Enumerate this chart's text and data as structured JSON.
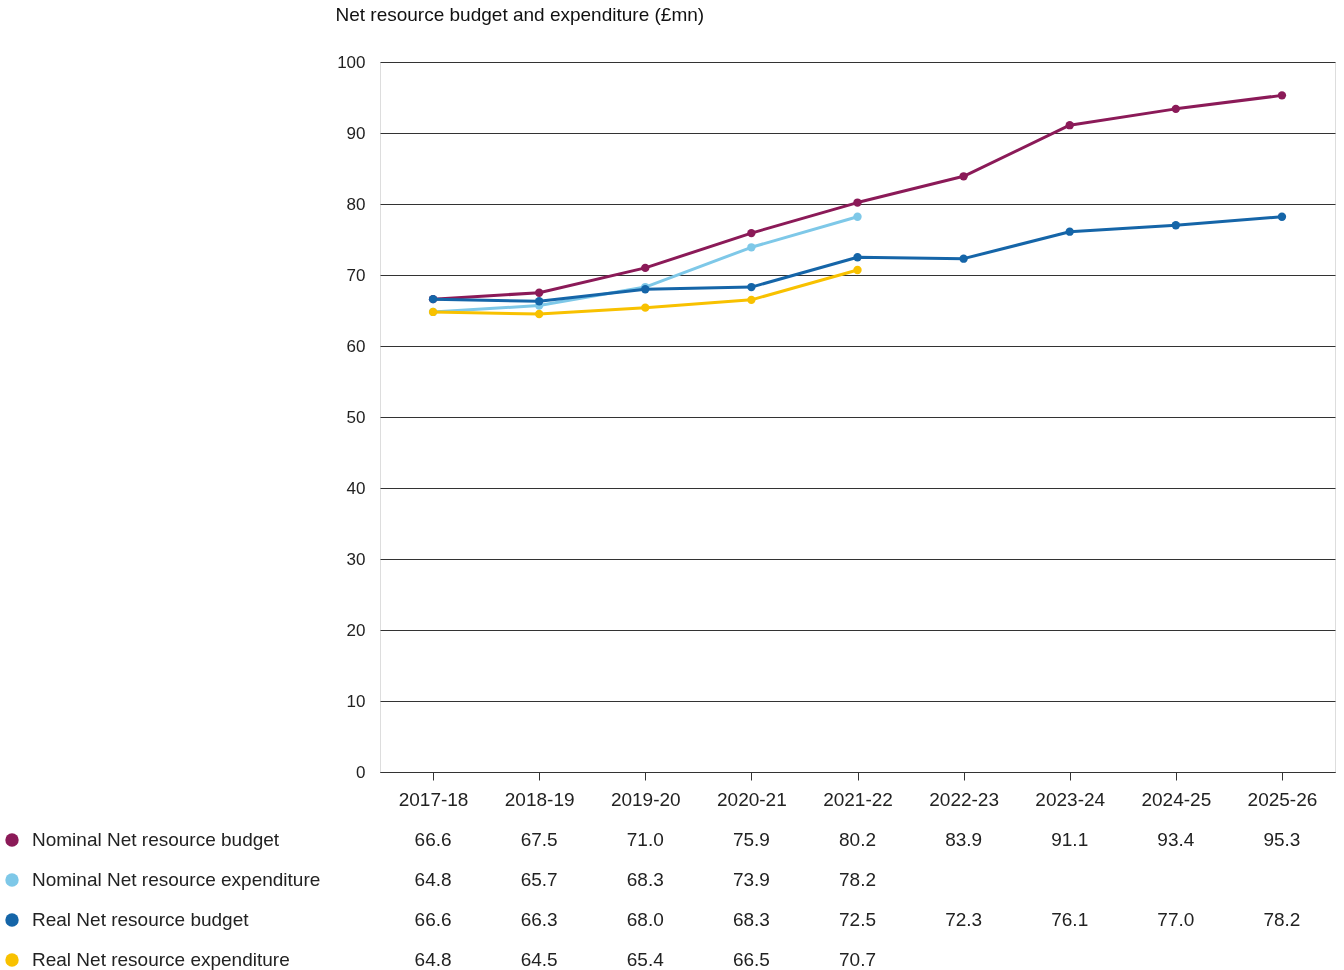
{
  "chart_data": {
    "type": "line",
    "ylabel": "Net resource budget and expenditure (£mn)",
    "categories": [
      "2017-18",
      "2018-19",
      "2019-20",
      "2020-21",
      "2021-22",
      "2022-23",
      "2023-24",
      "2024-25",
      "2025-26"
    ],
    "series": [
      {
        "name": "Nominal Net resource budget",
        "color": "#8b1a58",
        "values": [
          66.6,
          67.5,
          71.0,
          75.9,
          80.2,
          83.9,
          91.1,
          93.4,
          95.3
        ],
        "value_labels": [
          "66.6",
          "67.5",
          "71.0",
          "75.9",
          "80.2",
          "83.9",
          "91.1",
          "93.4",
          "95.3"
        ]
      },
      {
        "name": "Nominal Net resource expenditure",
        "color": "#7ec8e8",
        "values": [
          64.8,
          65.7,
          68.3,
          73.9,
          78.2,
          null,
          null,
          null,
          null
        ],
        "value_labels": [
          "64.8",
          "65.7",
          "68.3",
          "73.9",
          "78.2",
          null,
          null,
          null,
          null
        ]
      },
      {
        "name": "Real Net resource budget",
        "color": "#1565a8",
        "values": [
          66.6,
          66.3,
          68.0,
          68.3,
          72.5,
          72.3,
          76.1,
          77.0,
          78.2
        ],
        "value_labels": [
          "66.6",
          "66.3",
          "68.0",
          "68.3",
          "72.5",
          "72.3",
          "76.1",
          "77.0",
          "78.2"
        ]
      },
      {
        "name": "Real Net resource expenditure",
        "color": "#f8c100",
        "values": [
          64.8,
          64.5,
          65.4,
          66.5,
          70.7,
          null,
          null,
          null,
          null
        ],
        "value_labels": [
          "64.8",
          "64.5",
          "65.4",
          "66.5",
          "70.7",
          null,
          null,
          null,
          null
        ]
      }
    ],
    "ylim": [
      0,
      100
    ],
    "yticks": [
      0,
      10,
      20,
      30,
      40,
      50,
      60,
      70,
      80,
      90,
      100
    ],
    "grid": "y",
    "legend": "bottom left",
    "marker": "circle",
    "line_style": "solid"
  }
}
